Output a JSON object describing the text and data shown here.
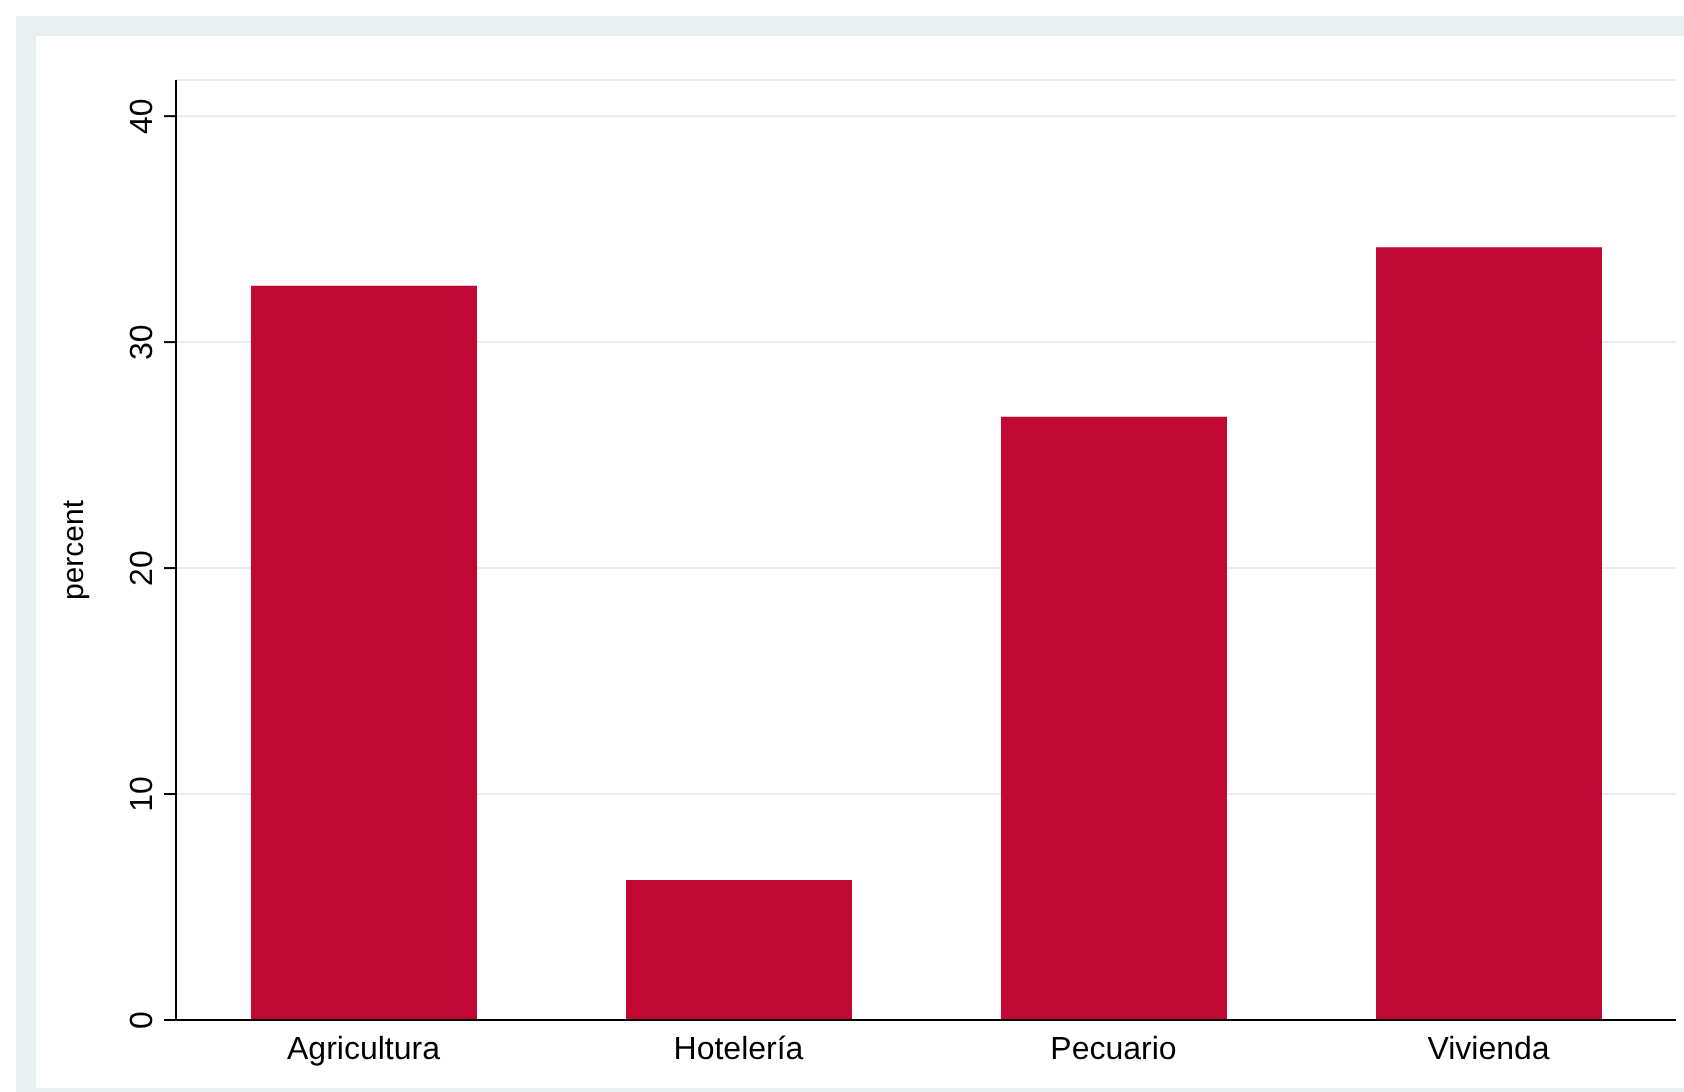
{
  "chart_data": {
    "type": "bar",
    "ylabel": "percent",
    "categories": [
      "Agricultura",
      "Hotelería",
      "Pecuario",
      "Vivienda"
    ],
    "values": [
      32.5,
      6.2,
      26.7,
      34.2
    ],
    "color": "#c00832",
    "ylim": [
      0,
      41.6
    ],
    "yticks": [
      0,
      10,
      20,
      30,
      40
    ],
    "grid": "y"
  }
}
